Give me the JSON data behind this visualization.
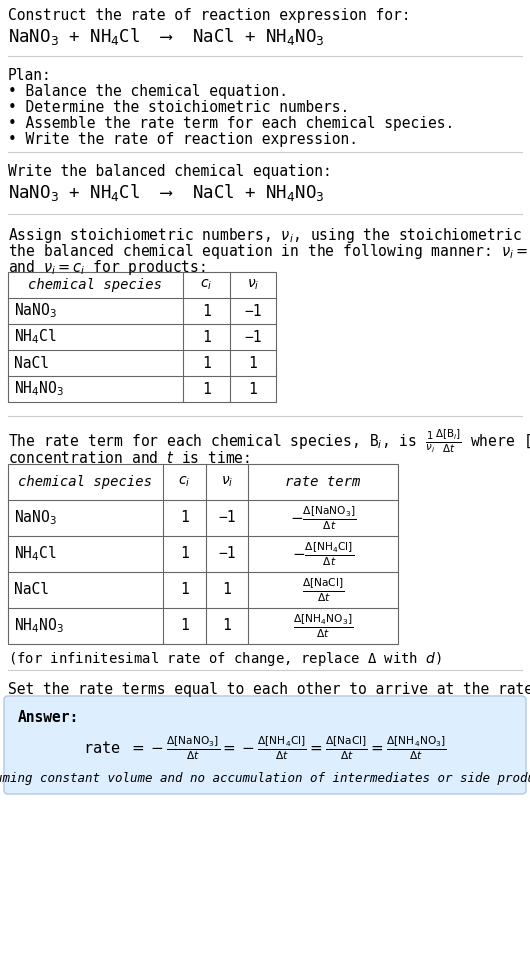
{
  "title_line1": "Construct the rate of reaction expression for:",
  "reaction_equation": "NaNO$_3$ + NH$_4$Cl  ⟶  NaCl + NH$_4$NO$_3$",
  "plan_header": "Plan:",
  "plan_items": [
    "• Balance the chemical equation.",
    "• Determine the stoichiometric numbers.",
    "• Assemble the rate term for each chemical species.",
    "• Write the rate of reaction expression."
  ],
  "balanced_header": "Write the balanced chemical equation:",
  "balanced_eq": "NaNO$_3$ + NH$_4$Cl  ⟶  NaCl + NH$_4$NO$_3$",
  "stoich_intro_1": "Assign stoichiometric numbers, $\\nu_i$, using the stoichiometric coefficients, $c_i$, from",
  "stoich_intro_2": "the balanced chemical equation in the following manner: $\\nu_i = -c_i$ for reactants",
  "stoich_intro_3": "and $\\nu_i = c_i$ for products:",
  "table1_headers": [
    "chemical species",
    "$c_i$",
    "$\\nu_i$"
  ],
  "table1_rows": [
    [
      "NaNO$_3$",
      "1",
      "−1"
    ],
    [
      "NH$_4$Cl",
      "1",
      "−1"
    ],
    [
      "NaCl",
      "1",
      "1"
    ],
    [
      "NH$_4$NO$_3$",
      "1",
      "1"
    ]
  ],
  "rate_intro_1": "The rate term for each chemical species, B$_i$, is $\\frac{1}{\\nu_i}\\frac{\\Delta[\\mathrm{B}_i]}{\\Delta t}$ where [B$_i$] is the amount",
  "rate_intro_2": "concentration and $t$ is time:",
  "table2_headers": [
    "chemical species",
    "$c_i$",
    "$\\nu_i$",
    "rate term"
  ],
  "table2_rows": [
    [
      "NaNO$_3$",
      "1",
      "−1",
      "$-\\frac{\\Delta[\\mathrm{NaNO_3}]}{\\Delta t}$"
    ],
    [
      "NH$_4$Cl",
      "1",
      "−1",
      "$-\\frac{\\Delta[\\mathrm{NH_4Cl}]}{\\Delta t}$"
    ],
    [
      "NaCl",
      "1",
      "1",
      "$\\frac{\\Delta[\\mathrm{NaCl}]}{\\Delta t}$"
    ],
    [
      "NH$_4$NO$_3$",
      "1",
      "1",
      "$\\frac{\\Delta[\\mathrm{NH_4NO_3}]}{\\Delta t}$"
    ]
  ],
  "infinitesimal_note": "(for infinitesimal rate of change, replace Δ with $d$)",
  "rate_expr_header": "Set the rate terms equal to each other to arrive at the rate expression:",
  "answer_label": "Answer:",
  "answer_rate_eq": "rate $= -\\frac{\\Delta[\\mathrm{NaNO_3}]}{\\Delta t} = -\\frac{\\Delta[\\mathrm{NH_4Cl}]}{\\Delta t} = \\frac{\\Delta[\\mathrm{NaCl}]}{\\Delta t} = \\frac{\\Delta[\\mathrm{NH_4NO_3}]}{\\Delta t}$",
  "answer_box_color": "#ddeeff",
  "answer_border_color": "#b0c8e8",
  "footnote": "(assuming constant volume and no accumulation of intermediates or side products)",
  "bg_color": "#ffffff",
  "text_color": "#000000",
  "separator_color": "#cccccc",
  "table_color": "#666666"
}
